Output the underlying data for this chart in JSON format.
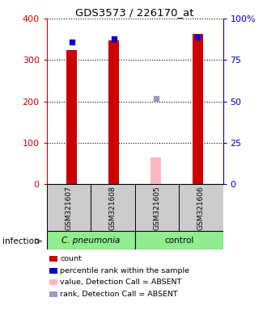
{
  "title": "GDS3573 / 226170_at",
  "samples": [
    "GSM321607",
    "GSM321608",
    "GSM321605",
    "GSM321606"
  ],
  "count_values": [
    325,
    347,
    65,
    363
  ],
  "count_absent": [
    false,
    false,
    true,
    false
  ],
  "percentile_values": [
    86,
    88,
    52,
    89
  ],
  "percentile_absent": [
    false,
    false,
    true,
    false
  ],
  "ylim_left": [
    0,
    400
  ],
  "ylim_right": [
    0,
    100
  ],
  "yticks_left": [
    0,
    100,
    200,
    300,
    400
  ],
  "yticks_right": [
    0,
    25,
    50,
    75,
    100
  ],
  "ytick_labels_right": [
    "0",
    "25",
    "50",
    "75",
    "100%"
  ],
  "count_color": "#CC0000",
  "count_absent_color": "#FFB6C1",
  "percentile_color": "#0000CC",
  "percentile_absent_color": "#9999CC",
  "bar_width": 0.25,
  "group_label": "infection",
  "cpneumonia_color": "#90EE90",
  "control_color": "#90EE90",
  "sample_box_color": "#CCCCCC",
  "legend_items": [
    {
      "color": "#CC0000",
      "label": "count"
    },
    {
      "color": "#0000CC",
      "label": "percentile rank within the sample"
    },
    {
      "color": "#FFB6C1",
      "label": "value, Detection Call = ABSENT"
    },
    {
      "color": "#9999CC",
      "label": "rank, Detection Call = ABSENT"
    }
  ]
}
